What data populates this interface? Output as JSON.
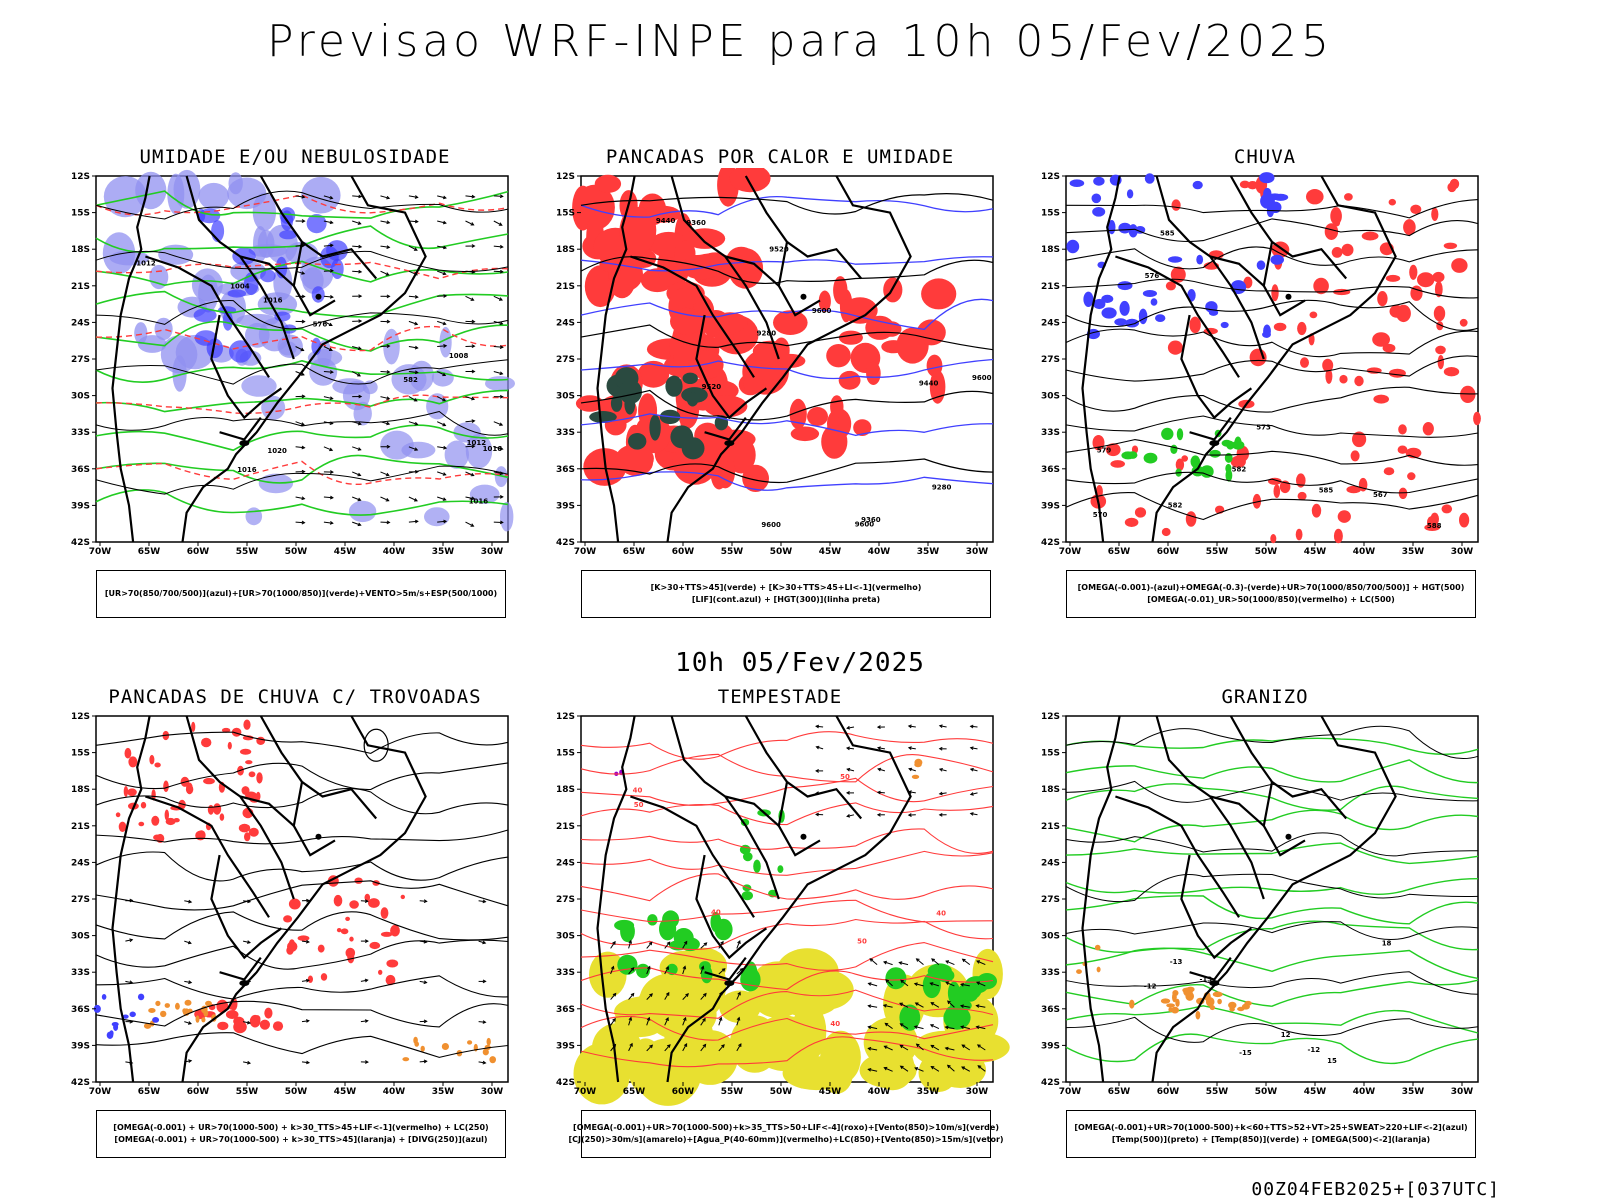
{
  "header": {
    "title": "Previsao WRF-INPE  para 10h 05/Fev/2025"
  },
  "subheader": {
    "label": "10h 05/Fev/2025"
  },
  "footer": {
    "run": "00Z04FEB2025+[037UTC]"
  },
  "axes": {
    "lat_ticks": [
      "12S",
      "15S",
      "18S",
      "21S",
      "24S",
      "27S",
      "30S",
      "33S",
      "36S",
      "39S",
      "42S"
    ],
    "lon_ticks": [
      "70W",
      "65W",
      "60W",
      "55W",
      "50W",
      "45W",
      "40W",
      "35W",
      "30W"
    ]
  },
  "colors": {
    "blue": "#4040ff",
    "light_blue": "#9090f0",
    "green": "#22cc22",
    "red": "#ff3b3b",
    "dark_green": "#2a4a40",
    "yellow": "#e8e030",
    "orange": "#f09030",
    "purple": "#9900cc"
  },
  "panels": [
    {
      "title": "UMIDADE E/OU NEBULOSIDADE",
      "legend": [
        "[UR>70(850/700/500)](azul)+[UR>70(1000/850)](verde)+VENTO>5m/s+ESP(500/1000)"
      ],
      "contour_labels": [
        "1012",
        "1016",
        "1012",
        "1008",
        "1004",
        "1020",
        "1016",
        "1016",
        "576",
        "582",
        "1016"
      ]
    },
    {
      "title": "PANCADAS POR CALOR E UMIDADE",
      "legend": [
        "[K>30+TTS>45](verde)  +  [K>30+TTS>45+LI<-1](vermelho)",
        "[LIF](cont.azul)  +  [HGT(300)](linha preta)"
      ],
      "contour_labels": [
        "9600",
        "9600",
        "9520",
        "9440",
        "9360",
        "9280",
        "9600",
        "9520",
        "9440",
        "9360",
        "9280",
        "9600"
      ]
    },
    {
      "title": "CHUVA",
      "legend": [
        "[OMEGA(-0.001)-(azul)+OMEGA(-0.3)-(verde)+UR>70(1000/850/700/500)]  +  HGT(500)",
        "[OMEGA(-0.01)_UR>50(1000/850)(vermelho)  +  LC(500)"
      ],
      "contour_labels": [
        "588",
        "585",
        "582",
        "579",
        "576",
        "573",
        "570",
        "567",
        "585",
        "582"
      ]
    },
    {
      "title": "PANCADAS DE CHUVA C/ TROVOADAS",
      "legend": [
        "[OMEGA(-0.001)  +  UR>70(1000-500)  +  k>30_TTS>45+LIF<-1](vermelho)  +  LC(250)",
        "[OMEGA(-0.001)  +  UR>70(1000-500)  +  k>30_TTS>45](laranja)  +  [DIVG(250)](azul)"
      ],
      "contour_labels": []
    },
    {
      "title": "TEMPESTADE",
      "legend": [
        "[OMEGA(-0.001)+UR>70(1000-500)+k>35_TTS>50+LIF<-4](roxo)+[Vento(850)>10m/s](verde)",
        "[CJ(250)>30m/s](amarelo)+[Agua_P(40-60mm)](vermelho)+LC(850)+[Vento(850)>15m/s](vetor)"
      ],
      "contour_labels": [
        "40",
        "50",
        "40",
        "50",
        "40",
        "40",
        "50"
      ]
    },
    {
      "title": "GRANIZO",
      "legend": [
        "[OMEGA(-0.001)+UR>70(1000-500)+k<60+TTS>52+VT>25+SWEAT>220+LIF<-2](azul)",
        "[Temp(500)](preto)  +  [Temp(850)](verde)  +  [OMEGA(500)<-2](laranja)"
      ],
      "contour_labels": [
        "-12",
        "-13",
        "-15",
        "-12",
        "-13",
        "12",
        "15",
        "18"
      ]
    }
  ]
}
